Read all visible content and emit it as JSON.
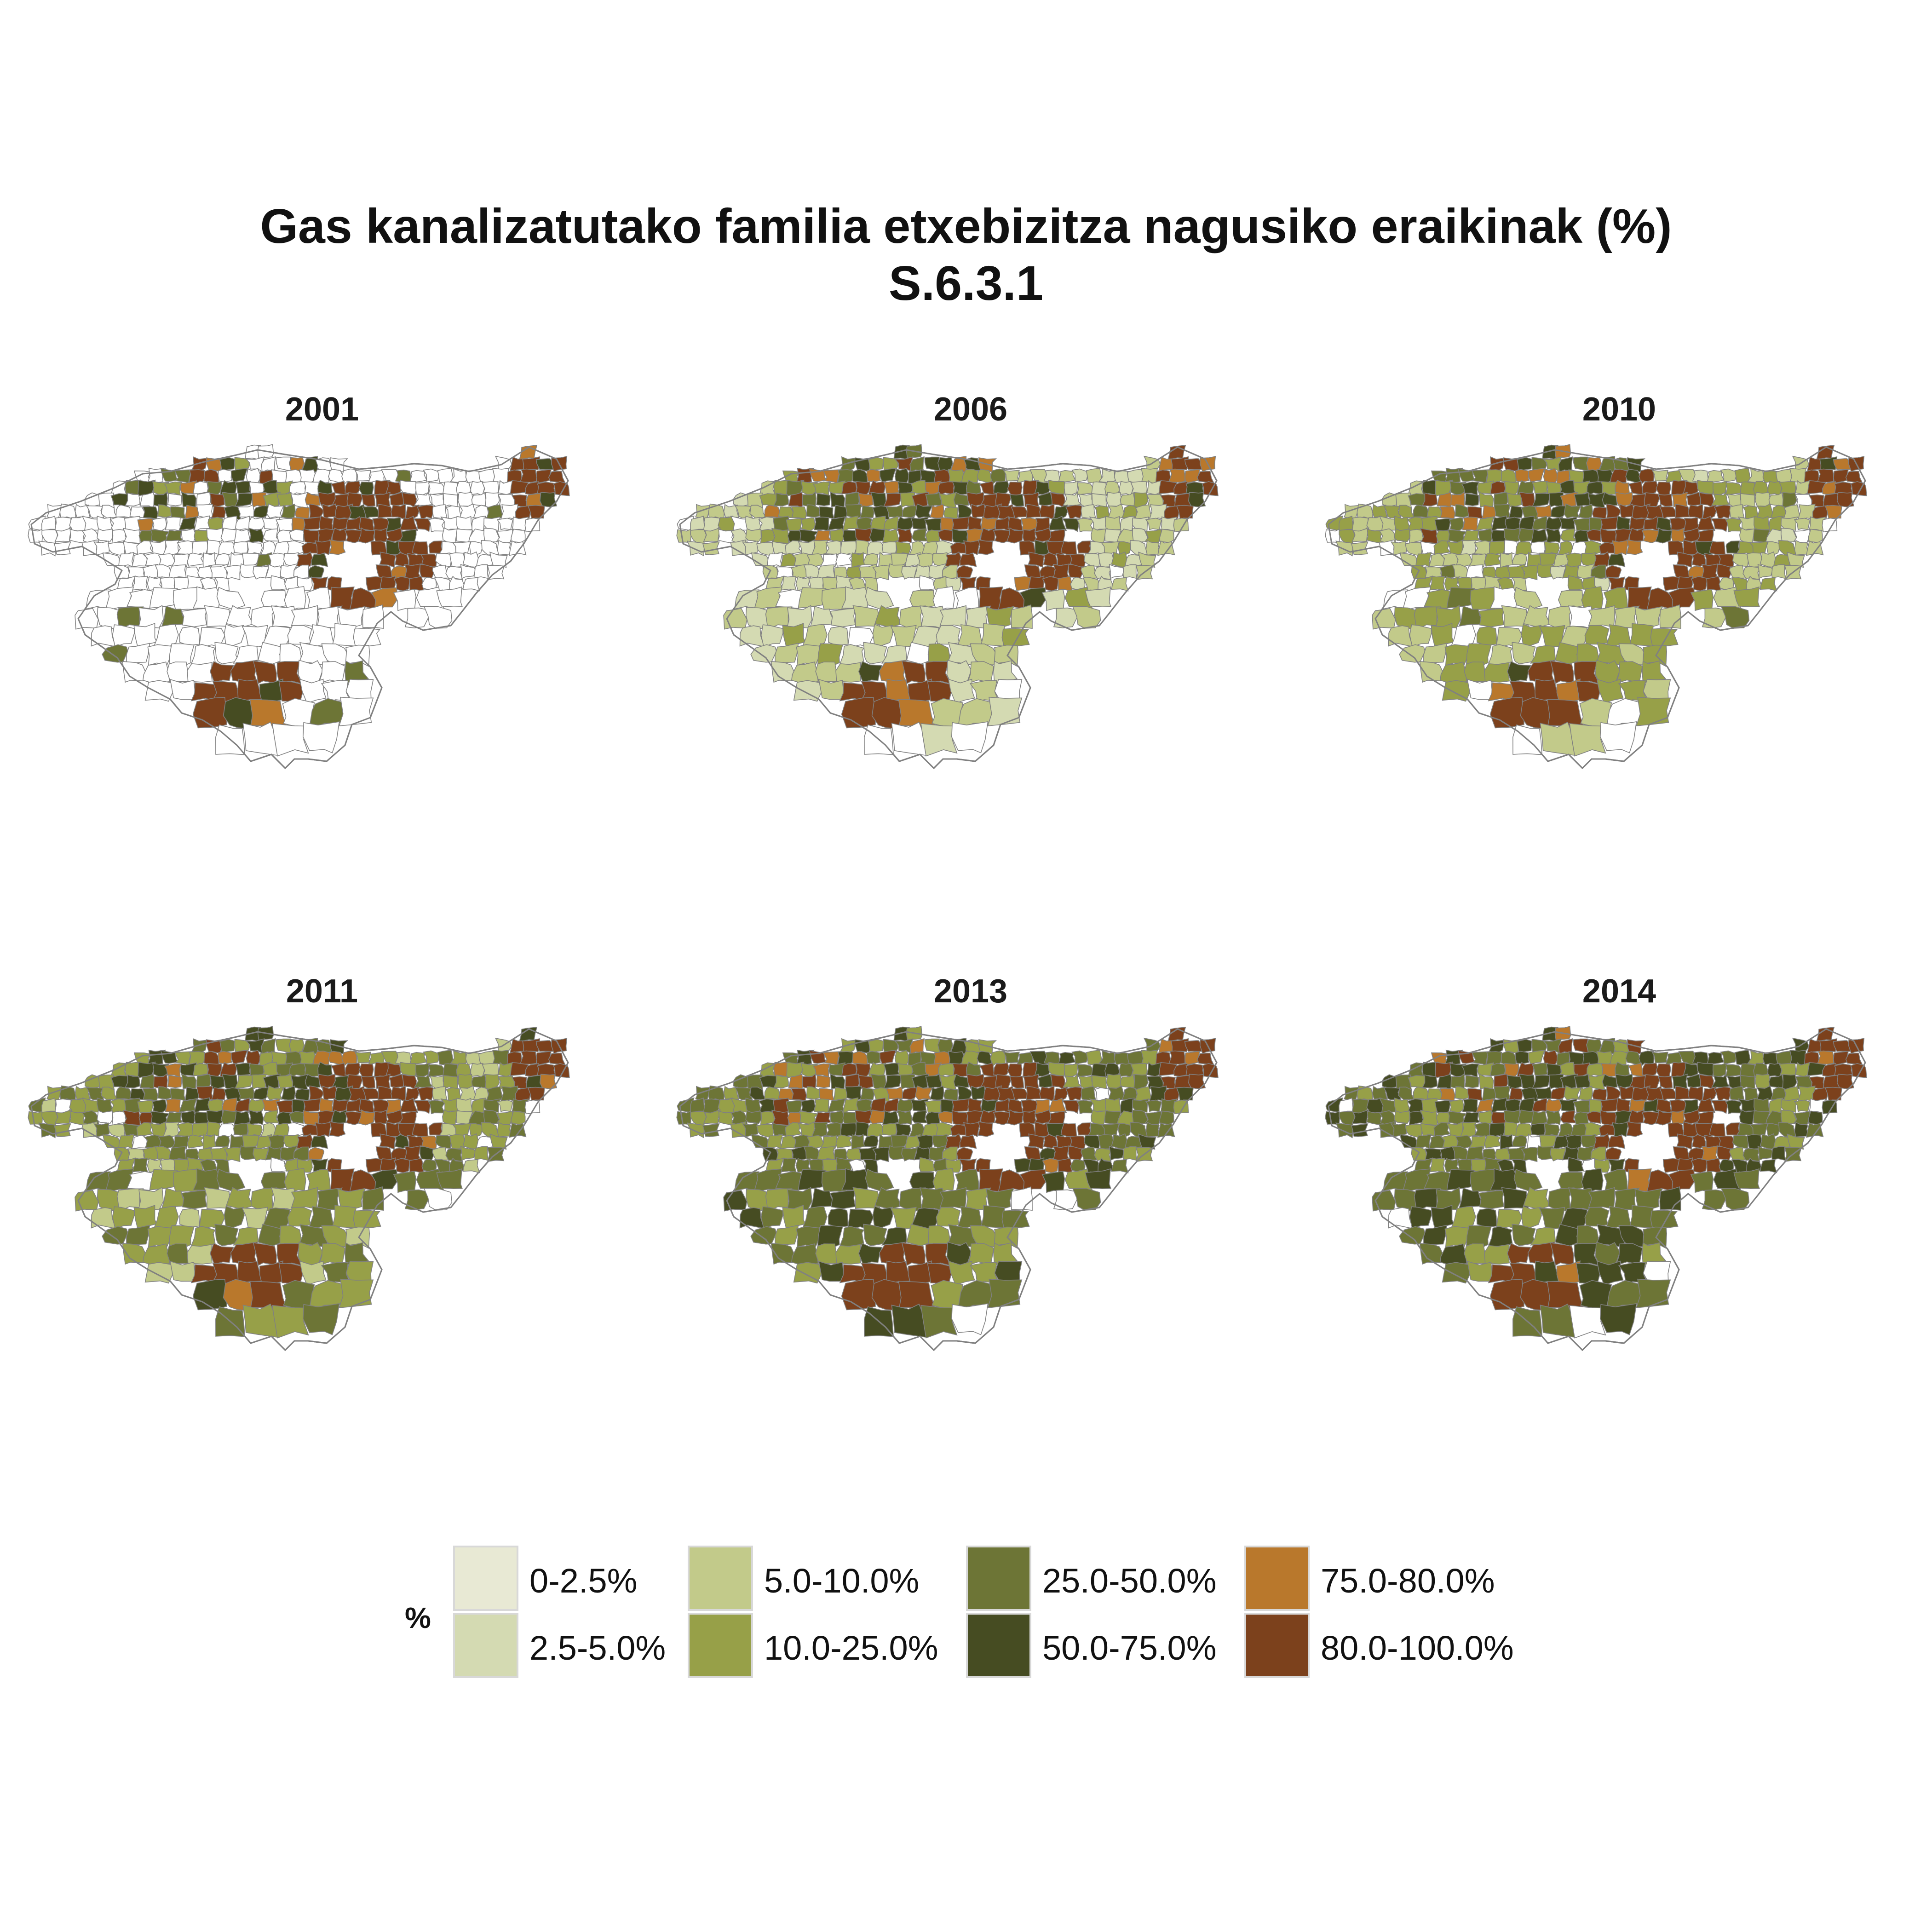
{
  "title": {
    "line1": "Gas kanalizatutako familia etxebizitza nagusiko eraikinak (%)",
    "line2": "S.6.3.1"
  },
  "legend": {
    "title": "%",
    "items": [
      {
        "label": "0-2.5%",
        "color": "#e8e9d4"
      },
      {
        "label": "2.5-5.0%",
        "color": "#d4dab2"
      },
      {
        "label": "5.0-10.0%",
        "color": "#c2ca8a"
      },
      {
        "label": "10.0-25.0%",
        "color": "#97a048"
      },
      {
        "label": "25.0-50.0%",
        "color": "#6d7536"
      },
      {
        "label": "50.0-75.0%",
        "color": "#464c22"
      },
      {
        "label": "75.0-80.0%",
        "color": "#b9782c"
      },
      {
        "label": "80.0-100.0%",
        "color": "#7c411c"
      }
    ]
  },
  "no_data_color": "#ffffff",
  "border_color": "#808080",
  "panels": [
    {
      "year": "2001"
    },
    {
      "year": "2006"
    },
    {
      "year": "2010"
    },
    {
      "year": "2011"
    },
    {
      "year": "2013"
    },
    {
      "year": "2014"
    }
  ]
}
